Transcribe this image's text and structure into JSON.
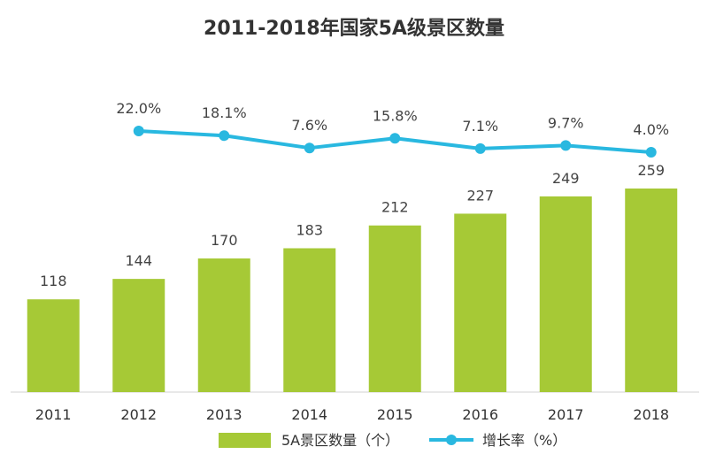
{
  "chart_data": {
    "type": "bar",
    "title": "2011-2018年国家5A级景区数量",
    "categories": [
      "2011",
      "2012",
      "2013",
      "2014",
      "2015",
      "2016",
      "2017",
      "2018"
    ],
    "series": [
      {
        "name": "5A景区数量（个）",
        "type": "bar",
        "color": "#a6c936",
        "values": [
          118,
          144,
          170,
          183,
          212,
          227,
          249,
          259
        ],
        "labels": [
          "118",
          "144",
          "170",
          "183",
          "212",
          "227",
          "249",
          "259"
        ]
      },
      {
        "name": "增长率（%）",
        "type": "line",
        "color": "#29b8e0",
        "x": [
          "2012",
          "2013",
          "2014",
          "2015",
          "2016",
          "2017",
          "2018"
        ],
        "values": [
          22.0,
          18.1,
          7.6,
          15.8,
          7.1,
          9.7,
          4.0
        ],
        "labels": [
          "22.0%",
          "18.1%",
          "7.6%",
          "15.8%",
          "7.1%",
          "9.7%",
          "4.0%"
        ]
      }
    ],
    "legend_position": "bottom",
    "grid": false
  }
}
